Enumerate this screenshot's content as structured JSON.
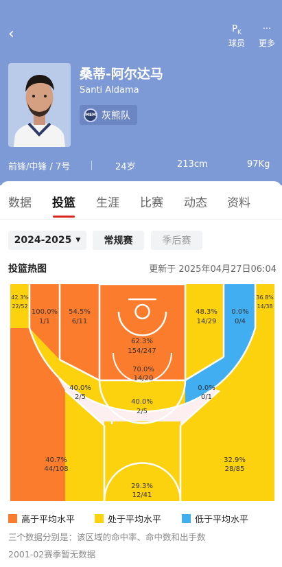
{
  "nav": {
    "back_icon": "‹",
    "pk_label": "球员",
    "pk_icon": "P",
    "pk_sub": "K",
    "more_label": "更多",
    "more_icon": "···"
  },
  "player": {
    "name_cn": "桑蒂-阿尔达马",
    "name_en": "Santi Aldama",
    "team": "灰熊队",
    "team_logo_text": "MEM",
    "position": "前锋/中锋 / 7号",
    "age": "24岁",
    "height": "213cm",
    "weight": "97Kg"
  },
  "tabs": [
    "数据",
    "投篮",
    "生涯",
    "比赛",
    "动态",
    "资料"
  ],
  "filters": {
    "season": "2024-2025",
    "regular": "常规赛",
    "playoff": "季后赛"
  },
  "section": {
    "title": "投篮热图",
    "updated": "更新于 2025年04月27日06:04"
  },
  "colors": {
    "above": "#fb7c2c",
    "average": "#fcd20f",
    "below": "#41aef1"
  },
  "zones": {
    "left_corner3": {
      "pct": "42.3%",
      "stat": "22/52"
    },
    "right_corner3": {
      "pct": "36.8%",
      "stat": "14/38"
    },
    "left_baseline_mid": {
      "pct": "100.0%",
      "stat": "1/1"
    },
    "left_elbow_mid": {
      "pct": "54.5%",
      "stat": "6/11"
    },
    "paint": {
      "pct": "62.3%",
      "stat": "154/247"
    },
    "restricted": {
      "pct": "70.0%",
      "stat": "14/20"
    },
    "right_elbow_mid": {
      "pct": "48.3%",
      "stat": "14/29"
    },
    "right_baseline_mid": {
      "pct": "0.0%",
      "stat": "0/4"
    },
    "left_wing_mid": {
      "pct": "40.0%",
      "stat": "2/5"
    },
    "top_mid": {
      "pct": "40.0%",
      "stat": "2/5"
    },
    "right_wing_mid": {
      "pct": "0.0%",
      "stat": "0/1"
    },
    "left_wing3": {
      "pct": "40.7%",
      "stat": "44/108"
    },
    "top3": {
      "pct": "29.3%",
      "stat": "12/41"
    },
    "right_wing3": {
      "pct": "32.9%",
      "stat": "28/85"
    }
  },
  "legend": {
    "above": "高于平均水平",
    "average": "处于平均水平",
    "below": "低于平均水平"
  },
  "notes": {
    "explain": "三个数据分别是：该区域的命中率、命中数和出手数",
    "nodata": "2001-02赛季暂无数据"
  }
}
